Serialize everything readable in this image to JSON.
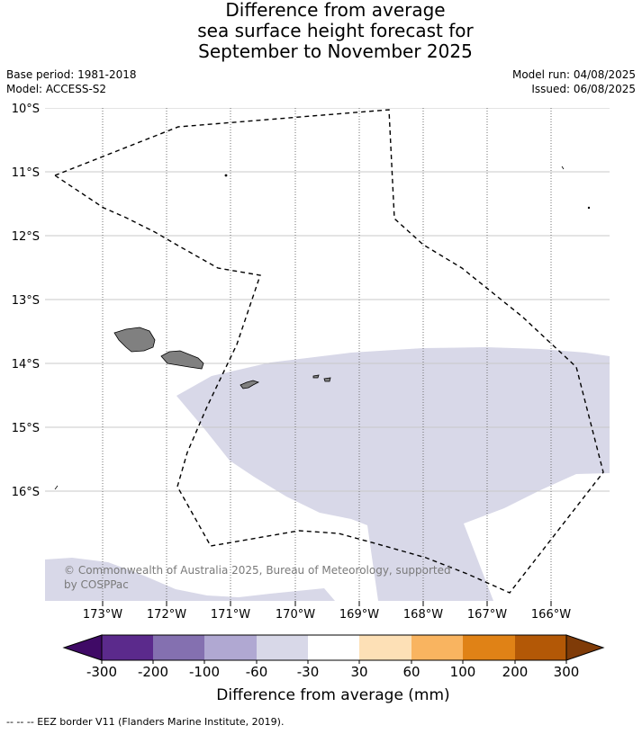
{
  "title": {
    "line1": "Difference from average",
    "line2": "sea surface height forecast for",
    "line3": "September to November 2025"
  },
  "meta": {
    "base_period": "Base period: 1981-2018",
    "model": "Model: ACCESS-S2",
    "model_run": "Model run: 04/08/2025",
    "issued": "Issued: 06/08/2025"
  },
  "map": {
    "lat_labels": [
      "10°S",
      "11°S",
      "12°S",
      "13°S",
      "14°S",
      "15°S",
      "16°S"
    ],
    "lon_labels": [
      "173°W",
      "172°W",
      "171°W",
      "170°W",
      "169°W",
      "168°W",
      "167°W",
      "166°W"
    ],
    "anomaly_fill_color": "#d8d8e8",
    "land_color": "#808080"
  },
  "colorbar": {
    "ticks": [
      "-300",
      "-200",
      "-100",
      "-60",
      "-30",
      "30",
      "60",
      "100",
      "200",
      "300"
    ],
    "colors": [
      "#3f0a66",
      "#5b2a8c",
      "#8470b0",
      "#b0a8d2",
      "#d8d8e8",
      "#ffffff",
      "#fde0b6",
      "#f9b460",
      "#e08216",
      "#b35806",
      "#7f3b08"
    ],
    "title": "Difference from average (mm)"
  },
  "copyright": "© Commonwealth of Australia 2025, Bureau of Meteorology, supported by COSPPac",
  "footnote": "--  --  -- EEZ border V11 (Flanders Marine Institute, 2019)."
}
